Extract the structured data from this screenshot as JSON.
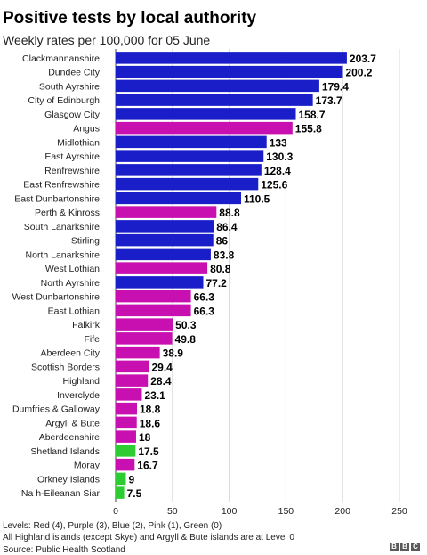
{
  "title": "Positive tests by local authority",
  "subtitle": "Weekly rates per 100,000 for 05 June",
  "footnote1": "Levels: Red (4), Purple (3), Blue (2), Pink (1), Green (0)",
  "footnote2": "All Highland islands (except Skye) and Argyll & Bute islands are at Level 0",
  "source": "Source: Public Health Scotland",
  "logo": [
    "B",
    "B",
    "C"
  ],
  "colors": {
    "blue": "#1a1ec8",
    "magenta": "#c80fb0",
    "green": "#2ecc33"
  },
  "chart_data": {
    "type": "bar",
    "orientation": "horizontal",
    "categories": [
      "Clackmannanshire",
      "Dundee City",
      "South Ayrshire",
      "City of Edinburgh",
      "Glasgow City",
      "Angus",
      "Midlothian",
      "East Ayrshire",
      "Renfrewshire",
      "East Renfrewshire",
      "East Dunbartonshire",
      "Perth & Kinross",
      "South Lanarkshire",
      "Stirling",
      "North Lanarkshire",
      "West Lothian",
      "North Ayrshire",
      "West Dunbartonshire",
      "East Lothian",
      "Falkirk",
      "Fife",
      "Aberdeen City",
      "Scottish Borders",
      "Highland",
      "Inverclyde",
      "Dumfries & Galloway",
      "Argyll & Bute",
      "Aberdeenshire",
      "Shetland Islands",
      "Moray",
      "Orkney Islands",
      "Na h-Eileanan Siar"
    ],
    "values": [
      203.7,
      200.2,
      179.4,
      173.7,
      158.7,
      155.8,
      133,
      130.3,
      128.4,
      125.6,
      110.5,
      88.8,
      86.4,
      86,
      83.8,
      80.8,
      77.2,
      66.3,
      66.3,
      50.3,
      49.8,
      38.9,
      29.4,
      28.4,
      23.1,
      18.8,
      18.6,
      18,
      17.5,
      16.7,
      9,
      7.5
    ],
    "value_labels": [
      "203.7",
      "200.2",
      "179.4",
      "173.7",
      "158.7",
      "155.8",
      "133",
      "130.3",
      "128.4",
      "125.6",
      "110.5",
      "88.8",
      "86.4",
      "86",
      "83.8",
      "80.8",
      "77.2",
      "66.3",
      "66.3",
      "50.3",
      "49.8",
      "38.9",
      "29.4",
      "28.4",
      "23.1",
      "18.8",
      "18.6",
      "18",
      "17.5",
      "16.7",
      "9",
      "7.5"
    ],
    "levels": [
      "blue",
      "blue",
      "blue",
      "blue",
      "blue",
      "magenta",
      "blue",
      "blue",
      "blue",
      "blue",
      "blue",
      "magenta",
      "blue",
      "blue",
      "blue",
      "magenta",
      "blue",
      "magenta",
      "magenta",
      "magenta",
      "magenta",
      "magenta",
      "magenta",
      "magenta",
      "magenta",
      "magenta",
      "magenta",
      "magenta",
      "green",
      "magenta",
      "green",
      "green"
    ],
    "xticks": [
      "0",
      "50",
      "100",
      "150",
      "200",
      "250"
    ],
    "xlim": [
      0,
      250
    ],
    "grid": true
  }
}
